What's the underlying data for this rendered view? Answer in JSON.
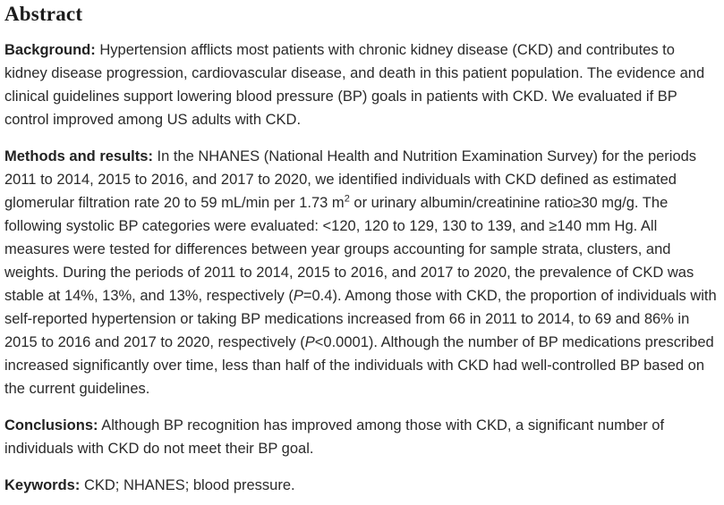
{
  "page": {
    "background_color": "#ffffff",
    "body_text_color": "#2a2a2a",
    "heading_text_color": "#1c1c1c"
  },
  "heading": "Abstract",
  "paragraphs": [
    {
      "name": "background",
      "segments": [
        {
          "t": "Background:",
          "b": true
        },
        {
          "t": " Hypertension afflicts most patients with chronic kidney disease (CKD) and contributes to kidney disease progression, cardiovascular disease, and death in this patient population. The evidence and clinical guidelines support lowering blood pressure (BP) goals in patients with CKD. We evaluated if BP control improved among US adults with CKD."
        }
      ]
    },
    {
      "name": "methods-and-results",
      "segments": [
        {
          "t": "Methods and results:",
          "b": true
        },
        {
          "t": " In the NHANES (National Health and Nutrition Examination Survey) for the periods 2011 to 2014, 2015 to 2016, and 2017 to 2020, we identified individuals with CKD defined as estimated glomerular filtration rate 20 to 59 mL/min per 1.73 m"
        },
        {
          "t": "2",
          "sup": true
        },
        {
          "t": " or urinary albumin/creatinine ratio≥30 mg/g. The following systolic BP categories were evaluated: <120, 120 to 129, 130 to 139, and ≥140 mm Hg. All measures were tested for differences between year groups accounting for sample strata, clusters, and weights. During the periods of 2011 to 2014, 2015 to 2016, and 2017 to 2020, the prevalence of CKD was stable at 14%, 13%, and 13%, respectively ("
        },
        {
          "t": "P",
          "i": true
        },
        {
          "t": "=0.4). Among those with CKD, the proportion of individuals with self-reported hypertension or taking BP medications increased from 66 in 2011 to 2014, to 69 and 86% in 2015 to 2016 and 2017 to 2020, respectively ("
        },
        {
          "t": "P",
          "i": true
        },
        {
          "t": "<0.0001). Although the number of BP medications prescribed increased significantly over time, less than half of the individuals with CKD had well-controlled BP based on the current guidelines."
        }
      ]
    },
    {
      "name": "conclusions",
      "segments": [
        {
          "t": "Conclusions:",
          "b": true
        },
        {
          "t": " Although BP recognition has improved among those with CKD, a significant number of individuals with CKD do not meet their BP goal."
        }
      ]
    },
    {
      "name": "keywords",
      "segments": [
        {
          "t": "Keywords:",
          "b": true
        },
        {
          "t": " CKD; NHANES; blood pressure."
        }
      ]
    }
  ]
}
